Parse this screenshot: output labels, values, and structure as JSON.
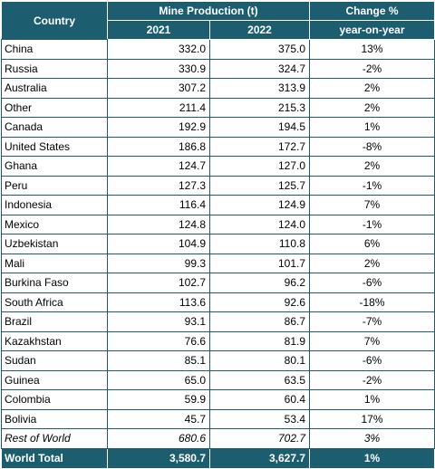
{
  "table": {
    "header": {
      "country": "Country",
      "production": "Mine Production (t)",
      "change": "Change %",
      "year1": "2021",
      "year2": "2022",
      "change_sub": "year-on-year"
    },
    "rows": [
      {
        "country": "China",
        "y2021": "332.0",
        "y2022": "375.0",
        "change": "13%"
      },
      {
        "country": "Russia",
        "y2021": "330.9",
        "y2022": "324.7",
        "change": "-2%"
      },
      {
        "country": "Australia",
        "y2021": "307.2",
        "y2022": "313.9",
        "change": "2%"
      },
      {
        "country": "Other",
        "y2021": "211.4",
        "y2022": "215.3",
        "change": "2%"
      },
      {
        "country": "Canada",
        "y2021": "192.9",
        "y2022": "194.5",
        "change": "1%"
      },
      {
        "country": "United States",
        "y2021": "186.8",
        "y2022": "172.7",
        "change": "-8%"
      },
      {
        "country": "Ghana",
        "y2021": "124.7",
        "y2022": "127.0",
        "change": "2%"
      },
      {
        "country": "Peru",
        "y2021": "127.3",
        "y2022": "125.7",
        "change": "-1%"
      },
      {
        "country": "Indonesia",
        "y2021": "116.4",
        "y2022": "124.9",
        "change": "7%"
      },
      {
        "country": "Mexico",
        "y2021": "124.8",
        "y2022": "124.0",
        "change": "-1%"
      },
      {
        "country": "Uzbekistan",
        "y2021": "104.9",
        "y2022": "110.8",
        "change": "6%"
      },
      {
        "country": "Mali",
        "y2021": "99.3",
        "y2022": "101.7",
        "change": "2%"
      },
      {
        "country": "Burkina Faso",
        "y2021": "102.7",
        "y2022": "96.2",
        "change": "-6%"
      },
      {
        "country": "South Africa",
        "y2021": "113.6",
        "y2022": "92.6",
        "change": "-18%"
      },
      {
        "country": "Brazil",
        "y2021": "93.1",
        "y2022": "86.7",
        "change": "-7%"
      },
      {
        "country": "Kazakhstan",
        "y2021": "76.6",
        "y2022": "81.9",
        "change": "7%"
      },
      {
        "country": "Sudan",
        "y2021": "85.1",
        "y2022": "80.1",
        "change": "-6%"
      },
      {
        "country": "Guinea",
        "y2021": "65.0",
        "y2022": "63.5",
        "change": "-2%"
      },
      {
        "country": "Colombia",
        "y2021": "59.9",
        "y2022": "60.4",
        "change": "1%"
      },
      {
        "country": "Bolivia",
        "y2021": "45.7",
        "y2022": "53.4",
        "change": "17%"
      }
    ],
    "rest_of_world": {
      "country": "Rest of World",
      "y2021": "680.6",
      "y2022": "702.7",
      "change": "3%"
    },
    "total": {
      "country": "World Total",
      "y2021": "3,580.7",
      "y2022": "3,627.7",
      "change": "1%"
    }
  },
  "colors": {
    "header_bg": "#1d5d70",
    "header_text": "#ffffff",
    "border": "#1f5a6b"
  }
}
